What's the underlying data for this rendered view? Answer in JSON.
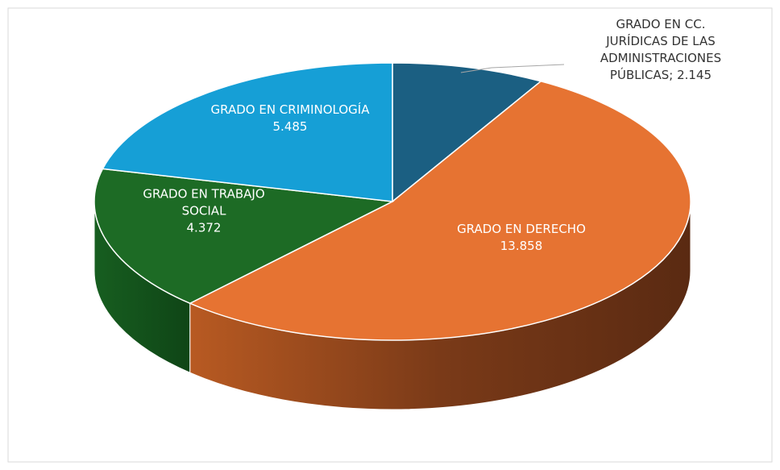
{
  "chart_data": {
    "type": "pie",
    "categories": [
      "GRADO EN CC. JURÍDICAS DE LAS ADMINISTRACIONES PÚBLICAS",
      "GRADO EN DERECHO",
      "GRADO EN TRABAJO SOCIAL",
      "GRADO EN CRIMINOLOGÍA"
    ],
    "values": [
      2145,
      13858,
      4372,
      5485
    ],
    "value_labels": [
      "2.145",
      "13.858",
      "4.372",
      "5.485"
    ],
    "colors": [
      "#1b5f82",
      "#e67332",
      "#1d6b25",
      "#169fd6"
    ],
    "label_separator": "; "
  }
}
